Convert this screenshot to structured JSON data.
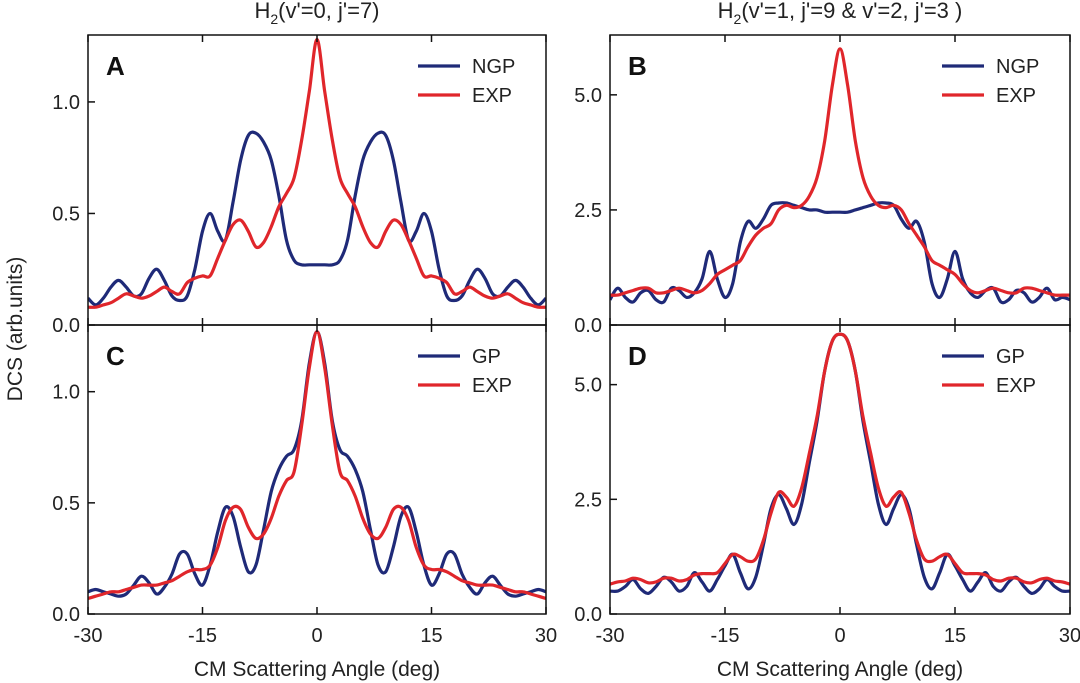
{
  "column_titles": {
    "left": {
      "main": "H",
      "sub": "2",
      "rest": "(v'=0, j'=7)"
    },
    "right": {
      "main": "H",
      "sub": "2",
      "rest": "(v'=1, j'=9 &  v'=2, j'=3 )"
    }
  },
  "ylabel": "DCS (arb.units)",
  "xlabel": "CM Scattering Angle (deg)",
  "colors": {
    "theory": "#1f2a78",
    "exp": "#e0262b"
  },
  "chart_data": [
    {
      "type": "line",
      "panel": "A",
      "legend_position": "top-right",
      "xlim": [
        -30,
        30
      ],
      "ylim": [
        0,
        1.3
      ],
      "xticks": [
        -30,
        -15,
        0,
        15,
        30
      ],
      "xtick_labels": [
        "",
        "",
        "",
        "",
        ""
      ],
      "yticks": [
        0,
        0.5,
        1.0
      ],
      "ytick_labels": [
        "0.0",
        "0.5",
        "1.0"
      ],
      "x": [
        -30,
        -29,
        -28,
        -27,
        -26,
        -25,
        -24,
        -23,
        -22,
        -21,
        -20,
        -19,
        -18,
        -17,
        -16,
        -15,
        -14,
        -13,
        -12,
        -11,
        -10,
        -9,
        -8,
        -7,
        -6,
        -5,
        -4,
        -3,
        -2,
        -1,
        0,
        1,
        2,
        3,
        4,
        5,
        6,
        7,
        8,
        9,
        10,
        11,
        12,
        13,
        14,
        15,
        16,
        17,
        18,
        19,
        20,
        21,
        22,
        23,
        24,
        25,
        26,
        27,
        28,
        29,
        30
      ],
      "series": [
        {
          "name": "NGP",
          "color_key": "theory",
          "values": [
            0.12,
            0.09,
            0.12,
            0.17,
            0.2,
            0.17,
            0.13,
            0.14,
            0.21,
            0.25,
            0.2,
            0.13,
            0.11,
            0.13,
            0.25,
            0.42,
            0.5,
            0.42,
            0.38,
            0.55,
            0.74,
            0.85,
            0.86,
            0.82,
            0.74,
            0.58,
            0.38,
            0.29,
            0.27,
            0.27,
            0.27,
            0.27,
            0.27,
            0.29,
            0.38,
            0.58,
            0.74,
            0.82,
            0.86,
            0.85,
            0.74,
            0.55,
            0.38,
            0.42,
            0.5,
            0.42,
            0.25,
            0.13,
            0.11,
            0.13,
            0.2,
            0.25,
            0.21,
            0.14,
            0.13,
            0.17,
            0.2,
            0.17,
            0.12,
            0.09,
            0.12
          ]
        },
        {
          "name": "EXP",
          "color_key": "exp",
          "values": [
            0.08,
            0.08,
            0.09,
            0.1,
            0.12,
            0.14,
            0.13,
            0.12,
            0.13,
            0.15,
            0.17,
            0.15,
            0.14,
            0.19,
            0.21,
            0.22,
            0.22,
            0.3,
            0.38,
            0.45,
            0.47,
            0.42,
            0.35,
            0.37,
            0.44,
            0.53,
            0.59,
            0.66,
            0.83,
            1.05,
            1.28,
            1.05,
            0.83,
            0.66,
            0.59,
            0.53,
            0.44,
            0.37,
            0.35,
            0.42,
            0.47,
            0.45,
            0.38,
            0.3,
            0.22,
            0.22,
            0.21,
            0.19,
            0.14,
            0.15,
            0.17,
            0.15,
            0.13,
            0.12,
            0.13,
            0.14,
            0.12,
            0.1,
            0.09,
            0.08,
            0.08
          ]
        }
      ]
    },
    {
      "type": "line",
      "panel": "B",
      "legend_position": "top-right",
      "xlim": [
        -30,
        30
      ],
      "ylim": [
        0,
        6.3
      ],
      "xticks": [
        -30,
        -15,
        0,
        15,
        30
      ],
      "xtick_labels": [
        "",
        "",
        "",
        "",
        ""
      ],
      "yticks": [
        0,
        2.5,
        5.0
      ],
      "ytick_labels": [
        "0.0",
        "2.5",
        "5.0"
      ],
      "x": [
        -30,
        -29,
        -28,
        -27,
        -26,
        -25,
        -24,
        -23,
        -22,
        -21,
        -20,
        -19,
        -18,
        -17,
        -16,
        -15,
        -14,
        -13,
        -12,
        -11,
        -10,
        -9,
        -8,
        -7,
        -6,
        -5,
        -4,
        -3,
        -2,
        -1,
        0,
        1,
        2,
        3,
        4,
        5,
        6,
        7,
        8,
        9,
        10,
        11,
        12,
        13,
        14,
        15,
        16,
        17,
        18,
        19,
        20,
        21,
        22,
        23,
        24,
        25,
        26,
        27,
        28,
        29,
        30
      ],
      "series": [
        {
          "name": "NGP",
          "color_key": "theory",
          "values": [
            0.55,
            0.8,
            0.6,
            0.5,
            0.7,
            0.75,
            0.55,
            0.5,
            0.8,
            0.75,
            0.6,
            0.7,
            1.0,
            1.6,
            1.0,
            0.6,
            0.9,
            1.8,
            2.25,
            2.1,
            2.3,
            2.6,
            2.65,
            2.65,
            2.6,
            2.55,
            2.5,
            2.5,
            2.45,
            2.45,
            2.45,
            2.45,
            2.5,
            2.55,
            2.6,
            2.65,
            2.65,
            2.6,
            2.3,
            2.1,
            2.25,
            1.8,
            0.9,
            0.6,
            1.0,
            1.6,
            1.0,
            0.7,
            0.6,
            0.75,
            0.8,
            0.5,
            0.55,
            0.75,
            0.7,
            0.5,
            0.6,
            0.8,
            0.55,
            0.6,
            0.55
          ]
        },
        {
          "name": "EXP",
          "color_key": "exp",
          "values": [
            0.65,
            0.65,
            0.7,
            0.75,
            0.8,
            0.8,
            0.7,
            0.7,
            0.75,
            0.8,
            0.75,
            0.7,
            0.75,
            0.9,
            1.1,
            1.2,
            1.3,
            1.4,
            1.7,
            1.95,
            2.1,
            2.2,
            2.5,
            2.6,
            2.55,
            2.6,
            2.8,
            3.2,
            4.0,
            5.2,
            6.0,
            5.2,
            4.0,
            3.2,
            2.8,
            2.6,
            2.55,
            2.6,
            2.5,
            2.2,
            1.95,
            1.7,
            1.4,
            1.3,
            1.2,
            1.1,
            0.9,
            0.75,
            0.7,
            0.75,
            0.8,
            0.75,
            0.7,
            0.7,
            0.8,
            0.8,
            0.75,
            0.7,
            0.65,
            0.65,
            0.65
          ]
        }
      ]
    },
    {
      "type": "line",
      "panel": "C",
      "legend_position": "top-right",
      "xlim": [
        -30,
        30
      ],
      "ylim": [
        0,
        1.3
      ],
      "xticks": [
        -30,
        -15,
        0,
        15,
        30
      ],
      "xtick_labels": [
        "-30",
        "-15",
        "0",
        "15",
        "30"
      ],
      "yticks": [
        0,
        0.5,
        1.0
      ],
      "ytick_labels": [
        "0.0",
        "0.5",
        "1.0"
      ],
      "x": [
        -30,
        -29,
        -28,
        -27,
        -26,
        -25,
        -24,
        -23,
        -22,
        -21,
        -20,
        -19,
        -18,
        -17,
        -16,
        -15,
        -14,
        -13,
        -12,
        -11,
        -10,
        -9,
        -8,
        -7,
        -6,
        -5,
        -4,
        -3,
        -2,
        -1,
        0,
        1,
        2,
        3,
        4,
        5,
        6,
        7,
        8,
        9,
        10,
        11,
        12,
        13,
        14,
        15,
        16,
        17,
        18,
        19,
        20,
        21,
        22,
        23,
        24,
        25,
        26,
        27,
        28,
        29,
        30
      ],
      "series": [
        {
          "name": "GP",
          "color_key": "theory",
          "values": [
            0.1,
            0.11,
            0.1,
            0.09,
            0.08,
            0.09,
            0.13,
            0.17,
            0.14,
            0.09,
            0.12,
            0.18,
            0.27,
            0.27,
            0.18,
            0.13,
            0.22,
            0.37,
            0.48,
            0.44,
            0.3,
            0.19,
            0.22,
            0.38,
            0.55,
            0.65,
            0.71,
            0.74,
            0.87,
            1.13,
            1.27,
            1.13,
            0.87,
            0.74,
            0.71,
            0.65,
            0.55,
            0.38,
            0.22,
            0.19,
            0.3,
            0.44,
            0.48,
            0.37,
            0.22,
            0.13,
            0.18,
            0.27,
            0.27,
            0.18,
            0.12,
            0.09,
            0.14,
            0.17,
            0.13,
            0.09,
            0.08,
            0.09,
            0.1,
            0.11,
            0.1
          ]
        },
        {
          "name": "EXP",
          "color_key": "exp",
          "values": [
            0.07,
            0.08,
            0.09,
            0.1,
            0.1,
            0.11,
            0.12,
            0.13,
            0.13,
            0.13,
            0.14,
            0.15,
            0.17,
            0.19,
            0.2,
            0.2,
            0.22,
            0.3,
            0.42,
            0.48,
            0.47,
            0.39,
            0.34,
            0.36,
            0.43,
            0.53,
            0.6,
            0.64,
            0.85,
            1.11,
            1.27,
            1.11,
            0.85,
            0.64,
            0.6,
            0.53,
            0.43,
            0.36,
            0.34,
            0.39,
            0.47,
            0.48,
            0.42,
            0.3,
            0.22,
            0.2,
            0.2,
            0.19,
            0.17,
            0.15,
            0.14,
            0.13,
            0.13,
            0.13,
            0.12,
            0.11,
            0.1,
            0.1,
            0.09,
            0.08,
            0.07
          ]
        }
      ]
    },
    {
      "type": "line",
      "panel": "D",
      "legend_position": "top-right",
      "xlim": [
        -30,
        30
      ],
      "ylim": [
        0,
        6.3
      ],
      "xticks": [
        -30,
        -15,
        0,
        15,
        30
      ],
      "xtick_labels": [
        "-30",
        "-15",
        "0",
        "15",
        "30"
      ],
      "yticks": [
        0,
        2.5,
        5.0
      ],
      "ytick_labels": [
        "0.0",
        "2.5",
        "5.0"
      ],
      "x": [
        -30,
        -29,
        -28,
        -27,
        -26,
        -25,
        -24,
        -23,
        -22,
        -21,
        -20,
        -19,
        -18,
        -17,
        -16,
        -15,
        -14,
        -13,
        -12,
        -11,
        -10,
        -9,
        -8,
        -7,
        -6,
        -5,
        -4,
        -3,
        -2,
        -1,
        0,
        1,
        2,
        3,
        4,
        5,
        6,
        7,
        8,
        9,
        10,
        11,
        12,
        13,
        14,
        15,
        16,
        17,
        18,
        19,
        20,
        21,
        22,
        23,
        24,
        25,
        26,
        27,
        28,
        29,
        30
      ],
      "series": [
        {
          "name": "GP",
          "color_key": "theory",
          "values": [
            0.5,
            0.5,
            0.6,
            0.75,
            0.55,
            0.45,
            0.6,
            0.8,
            0.7,
            0.5,
            0.6,
            0.9,
            0.7,
            0.5,
            0.75,
            1.05,
            1.3,
            0.9,
            0.55,
            0.8,
            1.5,
            2.3,
            2.6,
            2.3,
            1.95,
            2.4,
            3.3,
            4.2,
            5.3,
            5.95,
            6.1,
            5.95,
            5.3,
            4.2,
            3.3,
            2.4,
            1.95,
            2.3,
            2.6,
            2.3,
            1.5,
            0.8,
            0.55,
            0.9,
            1.3,
            1.05,
            0.75,
            0.5,
            0.7,
            0.9,
            0.6,
            0.5,
            0.7,
            0.8,
            0.6,
            0.45,
            0.55,
            0.75,
            0.6,
            0.5,
            0.5
          ]
        },
        {
          "name": "EXP",
          "color_key": "exp",
          "values": [
            0.65,
            0.7,
            0.72,
            0.78,
            0.75,
            0.68,
            0.7,
            0.78,
            0.78,
            0.72,
            0.75,
            0.85,
            0.88,
            0.88,
            0.9,
            1.1,
            1.3,
            1.25,
            1.15,
            1.2,
            1.6,
            2.2,
            2.65,
            2.55,
            2.35,
            2.75,
            3.5,
            4.3,
            5.3,
            5.95,
            6.1,
            5.95,
            5.3,
            4.3,
            3.5,
            2.75,
            2.35,
            2.55,
            2.65,
            2.2,
            1.6,
            1.2,
            1.15,
            1.25,
            1.3,
            1.1,
            0.9,
            0.88,
            0.88,
            0.85,
            0.75,
            0.72,
            0.78,
            0.78,
            0.7,
            0.68,
            0.75,
            0.78,
            0.72,
            0.7,
            0.65
          ]
        }
      ]
    }
  ]
}
